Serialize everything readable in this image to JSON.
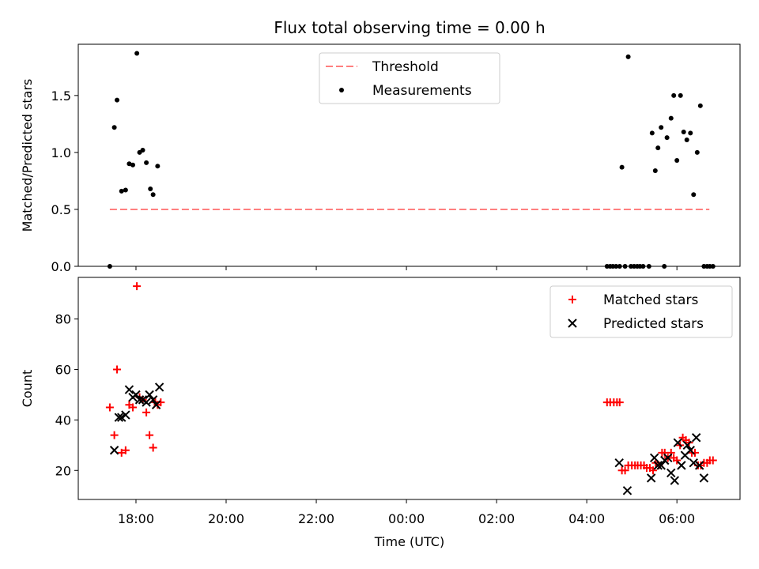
{
  "chart_data": {
    "type": "scatter",
    "title": "Flux total observing time = 0.00 h",
    "xlabel": "Time (UTC)",
    "x_unit": "hours after 00:00 UTC of the first night (values above 24 fall on the following date)",
    "xlim": [
      16.72,
      31.4
    ],
    "x_ticks": [
      {
        "value": 18,
        "label": "18:00"
      },
      {
        "value": 20,
        "label": "20:00"
      },
      {
        "value": 22,
        "label": "22:00"
      },
      {
        "value": 24,
        "label": "00:00"
      },
      {
        "value": 26,
        "label": "02:00"
      },
      {
        "value": 28,
        "label": "04:00"
      },
      {
        "value": 30,
        "label": "06:00"
      }
    ],
    "panels": [
      {
        "ylabel": "Matched/Predicted stars",
        "ylim": [
          0,
          1.95
        ],
        "y_ticks": [
          {
            "value": 0,
            "label": "0.0"
          },
          {
            "value": 0.5,
            "label": "0.5"
          },
          {
            "value": 1.0,
            "label": "1.0"
          },
          {
            "value": 1.5,
            "label": "1.5"
          }
        ],
        "legend_position": "top-center",
        "threshold": {
          "name": "Threshold",
          "value": 0.5,
          "x_range": [
            17.42,
            30.72
          ],
          "color": "#ff7f7f"
        },
        "series": [
          {
            "name": "Measurements",
            "marker": "dot",
            "color": "#000000",
            "x": [
              17.42,
              17.52,
              17.58,
              17.68,
              17.77,
              17.85,
              17.93,
              18.02,
              18.08,
              18.15,
              18.23,
              18.32,
              18.38,
              18.48,
              28.45,
              28.52,
              28.58,
              28.65,
              28.73,
              28.78,
              28.85,
              28.92,
              28.98,
              29.05,
              29.12,
              29.18,
              29.25,
              29.38,
              29.45,
              29.52,
              29.58,
              29.65,
              29.72,
              29.78,
              29.87,
              29.93,
              30.0,
              30.08,
              30.15,
              30.22,
              30.3,
              30.37,
              30.45,
              30.52,
              30.6,
              30.67,
              30.73,
              30.8
            ],
            "y": [
              0.0,
              1.22,
              1.46,
              0.66,
              0.67,
              0.9,
              0.89,
              1.87,
              1.0,
              1.02,
              0.91,
              0.68,
              0.63,
              0.88,
              0.0,
              0.0,
              0.0,
              0.0,
              0.0,
              0.87,
              0.0,
              1.84,
              0.0,
              0.0,
              0.0,
              0.0,
              0.0,
              0.0,
              1.17,
              0.84,
              1.04,
              1.22,
              0.0,
              1.13,
              1.3,
              1.5,
              0.93,
              1.5,
              1.18,
              1.11,
              1.17,
              0.63,
              1.0,
              1.41,
              0.0,
              0.0,
              0.0,
              0.0
            ]
          }
        ]
      },
      {
        "ylabel": "Count",
        "ylim": [
          8.5,
          96.5
        ],
        "y_ticks": [
          {
            "value": 20,
            "label": "20"
          },
          {
            "value": 40,
            "label": "40"
          },
          {
            "value": 60,
            "label": "60"
          },
          {
            "value": 80,
            "label": "80"
          }
        ],
        "legend_position": "top-right",
        "series": [
          {
            "name": "Matched stars",
            "marker": "plus",
            "color": "#ff0000",
            "x": [
              17.42,
              17.52,
              17.58,
              17.68,
              17.77,
              17.85,
              17.93,
              18.02,
              18.08,
              18.15,
              18.23,
              18.3,
              18.38,
              18.43,
              18.48,
              18.55,
              28.45,
              28.52,
              28.6,
              28.67,
              28.73,
              28.78,
              28.85,
              28.92,
              29.0,
              29.07,
              29.13,
              29.2,
              29.27,
              29.33,
              29.4,
              29.47,
              29.53,
              29.6,
              29.67,
              29.73,
              29.8,
              29.87,
              29.93,
              30.0,
              30.07,
              30.13,
              30.2,
              30.27,
              30.33,
              30.4,
              30.47,
              30.53,
              30.6,
              30.67,
              30.73,
              30.8
            ],
            "y": [
              45,
              34,
              60,
              27,
              28,
              46,
              45,
              93,
              49,
              48,
              43,
              34,
              29,
              47,
              46,
              47,
              47,
              47,
              47,
              47,
              47,
              20,
              20,
              22,
              22,
              22,
              22,
              22,
              22,
              21,
              21,
              20,
              23,
              22,
              27,
              27,
              25,
              27,
              25,
              24,
              30,
              33,
              32,
              31,
              27,
              27,
              22,
              22,
              23,
              23,
              24,
              24
            ]
          },
          {
            "name": "Predicted stars",
            "marker": "x",
            "color": "#000000",
            "x": [
              17.52,
              17.62,
              17.68,
              17.77,
              17.85,
              17.93,
              18.0,
              18.08,
              18.15,
              18.23,
              18.3,
              18.38,
              18.45,
              18.52,
              28.72,
              28.9,
              29.43,
              29.5,
              29.58,
              29.65,
              29.73,
              29.8,
              29.87,
              29.95,
              30.02,
              30.1,
              30.18,
              30.23,
              30.3,
              30.37,
              30.43,
              30.5,
              30.6
            ],
            "y": [
              28,
              41,
              41,
              42,
              52,
              49,
              50,
              48,
              48,
              47,
              50,
              48,
              46,
              53,
              23,
              12,
              17,
              25,
              22,
              22,
              24,
              25,
              19,
              16,
              31,
              22,
              26,
              30,
              28,
              23,
              33,
              22,
              17
            ]
          }
        ]
      }
    ]
  }
}
